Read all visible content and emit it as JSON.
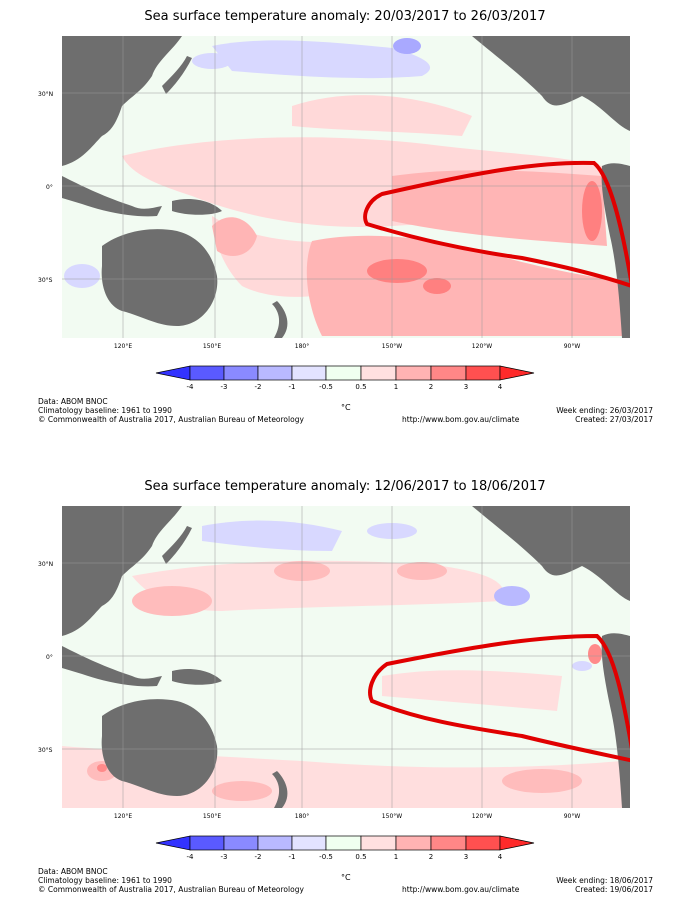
{
  "panels": [
    {
      "title": "Sea surface temperature anomaly: 20/03/2017 to 26/03/2017",
      "lat_labels": [
        "30°N",
        "0°",
        "30°S"
      ],
      "lon_labels": [
        "120°E",
        "150°E",
        "180°",
        "150°W",
        "120°W",
        "90°W"
      ],
      "colorbar_ticks": [
        "-4",
        "-3",
        "-2",
        "-1",
        "-0.5",
        "0.5",
        "1",
        "2",
        "3",
        "4"
      ],
      "unit": "°C",
      "footer_left": [
        "Data: ABOM BNOC",
        "Climatology baseline: 1961 to 1990",
        "© Commonwealth of Australia 2017, Australian Bureau of Meteorology"
      ],
      "footer_url": "http://www.bom.gov.au/climate",
      "week_ending": "Week ending: 26/03/2017",
      "created": "Created: 27/03/2017"
    },
    {
      "title": "Sea surface temperature anomaly: 12/06/2017 to 18/06/2017",
      "lat_labels": [
        "30°N",
        "0°",
        "30°S"
      ],
      "lon_labels": [
        "120°E",
        "150°E",
        "180°",
        "150°W",
        "120°W",
        "90°W"
      ],
      "colorbar_ticks": [
        "-4",
        "-3",
        "-2",
        "-1",
        "-0.5",
        "0.5",
        "1",
        "2",
        "3",
        "4"
      ],
      "unit": "°C",
      "footer_left": [
        "Data: ABOM BNOC",
        "Climatology baseline: 1961 to 1990",
        "© Commonwealth of Australia 2017, Australian Bureau of Meteorology"
      ],
      "footer_url": "http://www.bom.gov.au/climate",
      "week_ending": "Week ending: 18/06/2017",
      "created": "Created: 19/06/2017"
    }
  ],
  "colors": {
    "land": "#6e6e6e",
    "ocean_base": "#f2fbf2",
    "highlight_outline": "#e00000",
    "colorbar": [
      "#3333ff",
      "#5a5aff",
      "#8a8aff",
      "#b9b9ff",
      "#e3e3ff",
      "#f0fff0",
      "#ffe0e0",
      "#ffb3b3",
      "#ff8787",
      "#ff5050",
      "#ff2a2a"
    ]
  }
}
